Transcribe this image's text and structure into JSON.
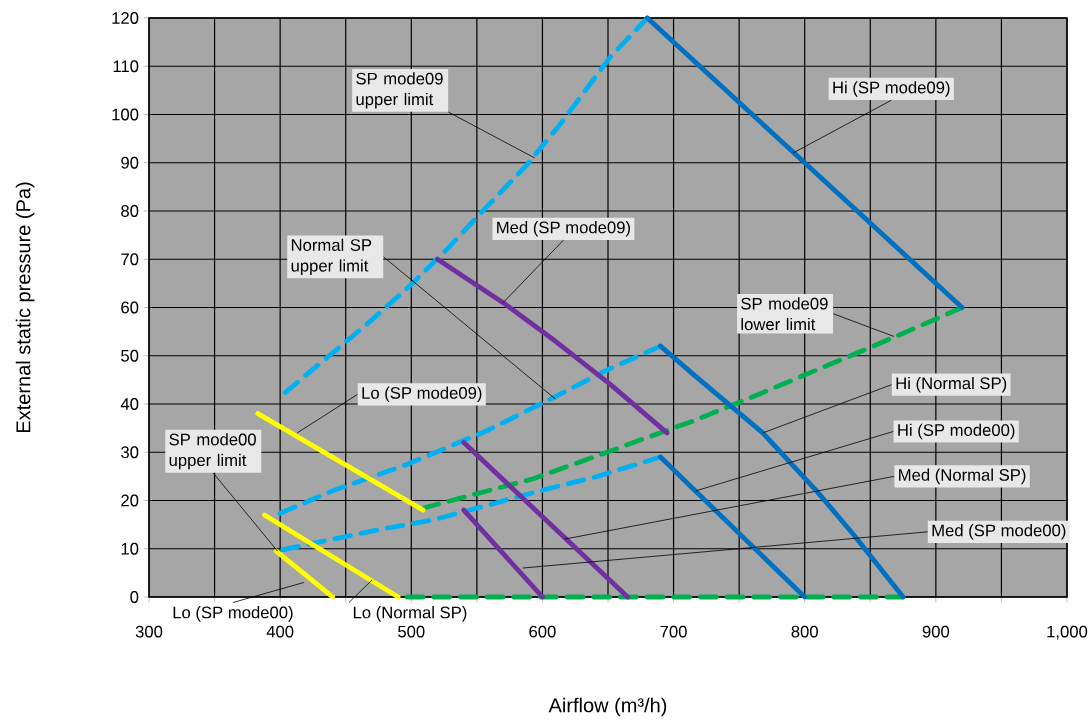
{
  "chart_data": {
    "type": "line",
    "xlabel": "Airflow (m³/h)",
    "ylabel": "External static pressure (Pa)",
    "xlim": [
      300,
      1000
    ],
    "ylim": [
      0,
      120
    ],
    "xticks": [
      300,
      {
        "value": 350,
        "label": null
      },
      400,
      {
        "value": 450,
        "label": null
      },
      500,
      {
        "value": 550,
        "label": null
      },
      600,
      {
        "value": 650,
        "label": null
      },
      700,
      {
        "value": 750,
        "label": null
      },
      800,
      {
        "value": 850,
        "label": null
      },
      900,
      {
        "value": 950,
        "label": null
      },
      {
        "value": 1000,
        "label": "1,000"
      }
    ],
    "yticks": [
      0,
      10,
      20,
      30,
      40,
      50,
      60,
      70,
      80,
      90,
      100,
      110,
      120
    ],
    "grid": true,
    "series": [
      {
        "color": "#00b0f0",
        "line_style": "dashed",
        "x": [
          400,
          433,
          466,
          499,
          527,
          558,
          588,
          615,
          652,
          680
        ],
        "values": [
          41.5,
          49,
          56.5,
          64.5,
          72,
          81,
          89.5,
          98.5,
          112,
          120
        ]
      },
      {
        "color": "#00b0f0",
        "line_style": "dashed",
        "x": [
          397,
          440,
          497,
          558,
          606,
          649,
          690
        ],
        "values": [
          17,
          22,
          27.5,
          34.5,
          41,
          47,
          52
        ]
      },
      {
        "color": "#00b0f0",
        "line_style": "dashed",
        "x": [
          397,
          423,
          476,
          517,
          558,
          598,
          642,
          690
        ],
        "values": [
          9.5,
          11,
          14,
          16,
          19,
          22,
          25,
          29
        ]
      },
      {
        "color": "#00b050",
        "line_style": "dashed",
        "x": [
          510,
          593,
          644,
          715,
          756,
          835,
          878,
          920
        ],
        "values": [
          18.5,
          24.5,
          29.5,
          36.5,
          41,
          50,
          55,
          60
        ]
      },
      {
        "color": "#00b050",
        "line_style": "dashed",
        "x": [
          490,
          875
        ],
        "values": [
          0,
          0
        ]
      },
      {
        "color": "#0070c0",
        "line_style": "solid",
        "x": [
          680,
          920
        ],
        "values": [
          120,
          60
        ]
      },
      {
        "color": "#0070c0",
        "line_style": "solid",
        "x": [
          690,
          720,
          768,
          809,
          837,
          875
        ],
        "values": [
          52,
          45,
          34,
          22,
          13,
          0
        ]
      },
      {
        "color": "#0070c0",
        "line_style": "solid",
        "x": [
          690,
          800
        ],
        "values": [
          29,
          0
        ]
      },
      {
        "color": "#7030a0",
        "line_style": "solid",
        "x": [
          520,
          570,
          610,
          652,
          695
        ],
        "values": [
          70,
          61,
          53,
          44,
          34
        ]
      },
      {
        "color": "#7030a0",
        "line_style": "solid",
        "x": [
          540,
          665
        ],
        "values": [
          32,
          0
        ]
      },
      {
        "color": "#7030a0",
        "line_style": "solid",
        "x": [
          540,
          600
        ],
        "values": [
          18,
          0
        ]
      },
      {
        "color": "#ffff00",
        "line_style": "solid",
        "x": [
          383,
          509
        ],
        "values": [
          38,
          18
        ]
      },
      {
        "color": "#ffff00",
        "line_style": "solid",
        "x": [
          388,
          490
        ],
        "values": [
          17,
          0
        ]
      },
      {
        "color": "#ffff00",
        "line_style": "solid",
        "x": [
          397,
          440
        ],
        "values": [
          9.5,
          0
        ]
      }
    ],
    "annotations": [
      {
        "text": "SP mode09 upper limit",
        "x": 594,
        "y": 91
      },
      {
        "text": "Normal SP upper limit",
        "x": 610,
        "y": 41
      },
      {
        "text": "SP mode00 upper limit",
        "x": 398,
        "y": 9.5
      },
      {
        "text": "SP mode09 lower limit",
        "x": 868,
        "y": 54
      },
      {
        "text": "Hi (SP mode09)",
        "x": 791,
        "y": 92
      },
      {
        "text": "Hi (Normal SP)",
        "x": 768,
        "y": 34
      },
      {
        "text": "Hi (SP mode00)",
        "x": 717,
        "y": 22
      },
      {
        "text": "Med (SP mode09)",
        "x": 570,
        "y": 61
      },
      {
        "text": "Med (Normal SP)",
        "x": 617,
        "y": 12
      },
      {
        "text": "Med (SP mode00)",
        "x": 585,
        "y": 6
      },
      {
        "text": "Lo (SP mode09)",
        "x": 413,
        "y": 34
      },
      {
        "text": "Lo (Normal SP)",
        "x": 470,
        "y": 3.5
      },
      {
        "text": "Lo (SP mode00)",
        "x": 418,
        "y": 3
      }
    ]
  }
}
